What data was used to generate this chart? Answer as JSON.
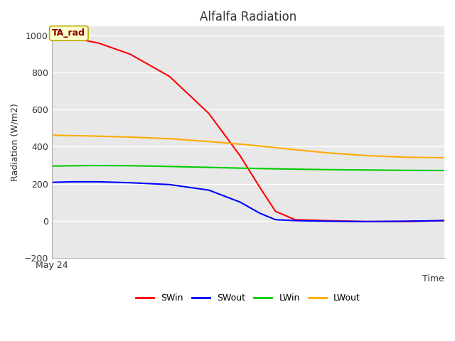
{
  "title": "Alfalfa Radiation",
  "xlabel": "Time",
  "ylabel": "Radiation (W/m2)",
  "annotation_label": "TA_rad",
  "plot_bg_color": "#e8e8e8",
  "fig_bg_color": "#ffffff",
  "ylim": [
    -200,
    1050
  ],
  "yticks": [
    -200,
    0,
    200,
    400,
    600,
    800,
    1000
  ],
  "x_label_start": "May 24",
  "series": {
    "SWin": {
      "color": "#ff0000",
      "linestyle": "-",
      "linewidth": 1.5,
      "x": [
        0,
        0.05,
        0.12,
        0.2,
        0.3,
        0.4,
        0.48,
        0.53,
        0.57,
        0.62,
        0.7,
        0.8,
        0.9,
        1.0
      ],
      "y": [
        1000,
        990,
        960,
        900,
        780,
        580,
        350,
        180,
        50,
        5,
        0,
        -5,
        -5,
        0
      ]
    },
    "SWout": {
      "color": "#0000ff",
      "linestyle": "-",
      "linewidth": 1.5,
      "x": [
        0,
        0.05,
        0.12,
        0.2,
        0.3,
        0.4,
        0.48,
        0.53,
        0.57,
        0.62,
        0.7,
        0.8,
        0.9,
        1.0
      ],
      "y": [
        207,
        210,
        210,
        205,
        195,
        165,
        100,
        40,
        5,
        0,
        -3,
        -5,
        -3,
        0
      ]
    },
    "LWin": {
      "color": "#00cc00",
      "linestyle": "-",
      "linewidth": 1.5,
      "x": [
        0,
        0.1,
        0.2,
        0.3,
        0.4,
        0.5,
        0.6,
        0.7,
        0.8,
        0.9,
        1.0
      ],
      "y": [
        295,
        298,
        297,
        293,
        288,
        283,
        279,
        276,
        274,
        272,
        271
      ]
    },
    "LWout": {
      "color": "#ffaa00",
      "linestyle": "-",
      "linewidth": 1.5,
      "x": [
        0,
        0.1,
        0.2,
        0.3,
        0.4,
        0.5,
        0.6,
        0.7,
        0.8,
        0.9,
        1.0
      ],
      "y": [
        462,
        458,
        452,
        443,
        428,
        410,
        388,
        367,
        352,
        343,
        340
      ]
    }
  },
  "legend": {
    "entries": [
      "SWin",
      "SWout",
      "LWin",
      "LWout"
    ],
    "colors": [
      "#ff0000",
      "#0000ff",
      "#00cc00",
      "#ffaa00"
    ],
    "linestyles": [
      "-",
      "-",
      "-",
      "-"
    ]
  }
}
